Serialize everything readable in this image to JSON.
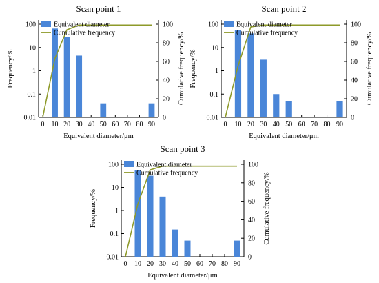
{
  "colors": {
    "bar": "#4a86d8",
    "line": "#8e9a2a",
    "axis": "#000000"
  },
  "chart_data": [
    {
      "type": "bar",
      "title": "Scan point 1",
      "xlabel": "Equivalent diameter/μm",
      "ylabel": "Frequency/%",
      "ylabel_right": "Cumulative frequency/%",
      "y_scale": "log",
      "ylim": [
        0.01,
        100
      ],
      "y_right_lim": [
        0,
        100
      ],
      "x_ticks": [
        "0",
        "10",
        "20",
        "30",
        "40",
        "50",
        "60",
        "70",
        "80",
        "90"
      ],
      "y_ticks": [
        "0.01",
        "0.1",
        "1",
        "10",
        "100"
      ],
      "y_right_ticks": [
        "0",
        "20",
        "40",
        "60",
        "80",
        "100"
      ],
      "legend": [
        "Equivalent diameter",
        "Cumulative frequency"
      ],
      "legend_position": "top",
      "series": [
        {
          "name": "Equivalent diameter",
          "kind": "bar",
          "x": [
            10,
            20,
            30,
            50,
            90
          ],
          "values": [
            65,
            28,
            4.5,
            0.04,
            0.04
          ]
        },
        {
          "name": "Cumulative frequency",
          "kind": "line",
          "x": [
            0,
            10,
            20,
            30,
            90
          ],
          "values": [
            0,
            63,
            94,
            99,
            99
          ]
        }
      ]
    },
    {
      "type": "bar",
      "title": "Scan point 2",
      "xlabel": "Equivalent diameter/μm",
      "ylabel": "Frequency/%",
      "ylabel_right": "Cumulative frequency/%",
      "y_scale": "log",
      "ylim": [
        0.01,
        100
      ],
      "y_right_lim": [
        0,
        100
      ],
      "x_ticks": [
        "0",
        "10",
        "20",
        "30",
        "40",
        "50",
        "60",
        "70",
        "80",
        "90"
      ],
      "y_ticks": [
        "0.01",
        "0.1",
        "1",
        "10",
        "100"
      ],
      "y_right_ticks": [
        "0",
        "20",
        "40",
        "60",
        "80",
        "100"
      ],
      "legend": [
        "Equivalent diameter",
        "Cumulative frequency"
      ],
      "legend_position": "top",
      "series": [
        {
          "name": "Equivalent diameter",
          "kind": "bar",
          "x": [
            10,
            20,
            30,
            40,
            50,
            90
          ],
          "values": [
            55,
            40,
            3,
            0.1,
            0.05,
            0.05
          ]
        },
        {
          "name": "Cumulative frequency",
          "kind": "line",
          "x": [
            0,
            10,
            20,
            30,
            90
          ],
          "values": [
            0,
            55,
            97,
            99,
            99
          ]
        }
      ]
    },
    {
      "type": "bar",
      "title": "Scan point 3",
      "xlabel": "Equivalent diameter/μm",
      "ylabel": "Frequency/%",
      "ylabel_right": "Cumulative frequency/%",
      "y_scale": "log",
      "ylim": [
        0.01,
        100
      ],
      "y_right_lim": [
        0,
        100
      ],
      "x_ticks": [
        "0",
        "10",
        "20",
        "30",
        "40",
        "50",
        "60",
        "70",
        "80",
        "90"
      ],
      "y_ticks": [
        "0.01",
        "0.1",
        "1",
        "10",
        "100"
      ],
      "y_right_ticks": [
        "0",
        "20",
        "40",
        "60",
        "80",
        "100"
      ],
      "legend": [
        "Equivalent diameter",
        "Cumulative frequency"
      ],
      "legend_position": "top",
      "series": [
        {
          "name": "Equivalent diameter",
          "kind": "bar",
          "x": [
            10,
            20,
            30,
            40,
            50,
            90
          ],
          "values": [
            55,
            32,
            4,
            0.15,
            0.05,
            0.05
          ]
        },
        {
          "name": "Cumulative frequency",
          "kind": "line",
          "x": [
            0,
            10,
            20,
            30,
            90
          ],
          "values": [
            0,
            57,
            94,
            98,
            98
          ]
        }
      ]
    }
  ]
}
